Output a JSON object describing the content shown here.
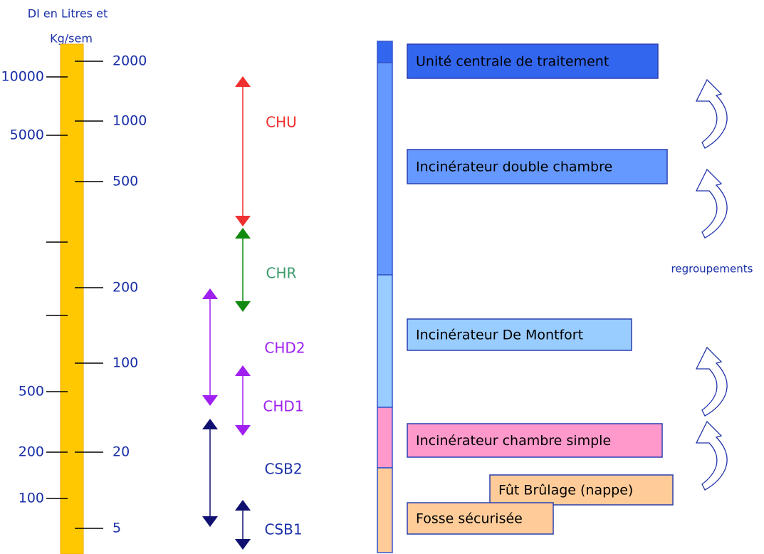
{
  "header": {
    "line1": "DI en Litres et",
    "line2": "Kg/sem"
  },
  "left_scale": {
    "labels": [
      "10000",
      "5000",
      "500",
      "200",
      "100"
    ]
  },
  "right_scale": {
    "labels": [
      "2000",
      "1000",
      "500",
      "200",
      "100",
      "20",
      "5"
    ]
  },
  "ranges": [
    {
      "label": "CHU"
    },
    {
      "label": "CHR"
    },
    {
      "label": "CHD2"
    },
    {
      "label": "CHD1"
    },
    {
      "label": "CSB2"
    },
    {
      "label": "CSB1"
    }
  ],
  "levels": [
    {
      "label": "Unité centrale de traitement"
    },
    {
      "label": "Incinérateur double chambre"
    },
    {
      "label": "Incinérateur De Montfort"
    },
    {
      "label": "Incinérateur chambre simple"
    },
    {
      "label": "Fût Brûlage (nappe)"
    },
    {
      "label": "Fosse sécurisée"
    }
  ],
  "note": "regroupements"
}
